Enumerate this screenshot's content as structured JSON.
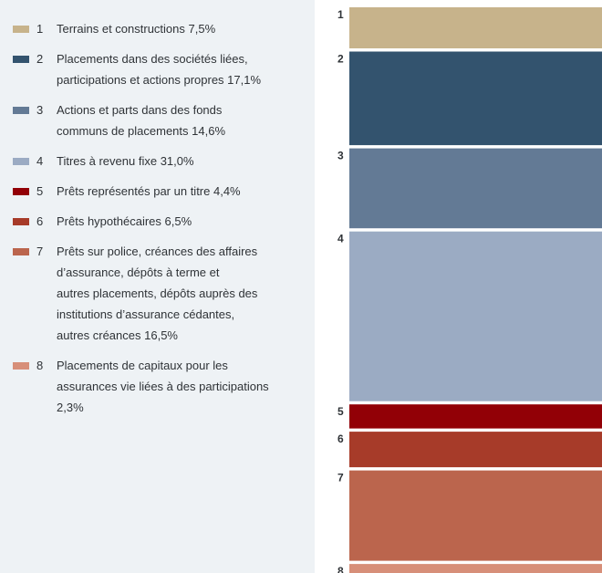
{
  "chart_data": {
    "type": "stacked_column",
    "series": [
      {
        "number": "1",
        "name": "Terrains et constructions",
        "color": "#c7b38b",
        "values": [
          7.5
        ],
        "value_labels": [
          "7,5%"
        ]
      },
      {
        "number": "2",
        "name": "Placements dans des sociétés liées,\nparticipations et actions propres",
        "color": "#33536e",
        "values": [
          17.1
        ],
        "value_labels": [
          "17,1%"
        ]
      },
      {
        "number": "3",
        "name": "Actions et parts dans des fonds\ncommuns de placements",
        "color": "#637a95",
        "values": [
          14.6
        ],
        "value_labels": [
          "14,6%"
        ]
      },
      {
        "number": "4",
        "name": "Titres à revenu fixe",
        "color": "#9babc3",
        "values": [
          31.0
        ],
        "value_labels": [
          "31,0%"
        ]
      },
      {
        "number": "5",
        "name": "Prêts représentés par un titre",
        "color": "#920006",
        "values": [
          4.4
        ],
        "value_labels": [
          "4,4%"
        ]
      },
      {
        "number": "6",
        "name": "Prêts hypothécaires",
        "color": "#a73b29",
        "values": [
          6.5
        ],
        "value_labels": [
          "6,5%"
        ]
      },
      {
        "number": "7",
        "name": "Prêts sur police, créances des affaires\nd’assurance, dépôts à terme et\nautres placements, dépôts auprès des\ninstitutions d’assurance cédantes,\nautres créances",
        "color": "#bb654d",
        "values": [
          16.5
        ],
        "value_labels": [
          "16,5%"
        ]
      },
      {
        "number": "8",
        "name": "Placements de capitaux pour les\nassurances vie liées à des participations\n",
        "color": "#d78f79",
        "values": [
          2.3
        ],
        "value_labels": [
          "2,3%"
        ]
      }
    ]
  }
}
